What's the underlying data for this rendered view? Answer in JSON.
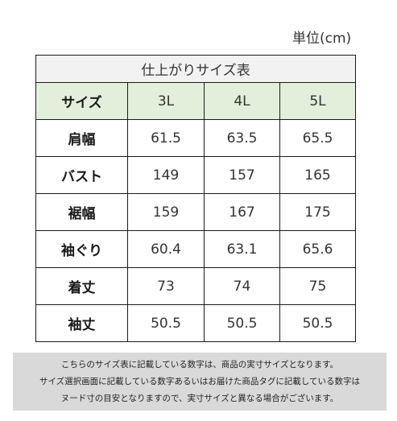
{
  "unit_label": "単位(cm)",
  "table": {
    "title": "仕上がりサイズ表",
    "header": [
      "サイズ",
      "3L",
      "4L",
      "5L"
    ],
    "rows": [
      {
        "label": "肩幅",
        "values": [
          "61.5",
          "63.5",
          "65.5"
        ]
      },
      {
        "label": "バスト",
        "values": [
          "149",
          "157",
          "165"
        ]
      },
      {
        "label": "裾幅",
        "values": [
          "159",
          "167",
          "175"
        ]
      },
      {
        "label": "袖ぐり",
        "values": [
          "60.4",
          "63.1",
          "65.6"
        ]
      },
      {
        "label": "着丈",
        "values": [
          "73",
          "74",
          "75"
        ]
      },
      {
        "label": "袖丈",
        "values": [
          "50.5",
          "50.5",
          "50.5"
        ]
      }
    ]
  },
  "note": {
    "lines": [
      "こちらのサイズ表に記載している数字は、商品の実寸サイズとなります。",
      "サイズ選択画面に記載している数字あるいはお届けた商品タグに記載している数字は",
      "ヌード寸の目安となりますので、実寸サイズと異なる場合がございます。"
    ]
  },
  "colors": {
    "title_bg": "#f2f2f2",
    "header_bg": "#e2efda",
    "note_bg": "#d9d9d9",
    "border": "#1a1a1a"
  }
}
